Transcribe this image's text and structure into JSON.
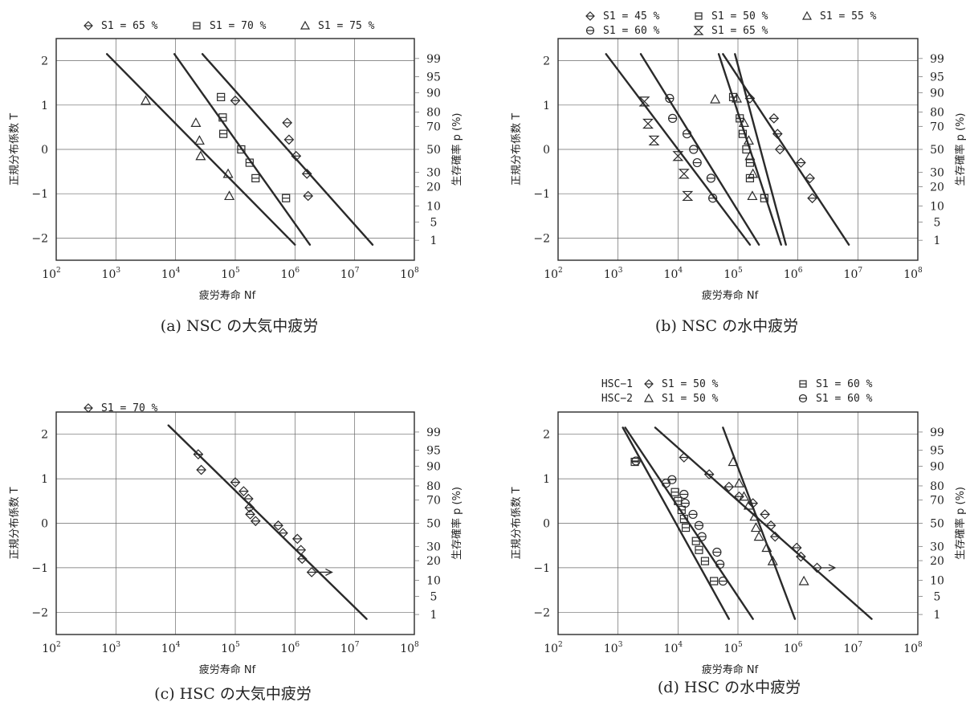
{
  "chart_data": [
    {
      "id": "a",
      "type": "scatter",
      "caption": "(a)  NSC の大気中疲労",
      "xlabel": "疲労寿命  Nf",
      "ylabel_left": "正規分布係数  T",
      "ylabel_right": "生存確率  p (%)",
      "x_scale": "log10",
      "xlim_exp": [
        2,
        8
      ],
      "ylim": [
        -2.5,
        2.5
      ],
      "x_tick_exponents": [
        2,
        3,
        4,
        5,
        6,
        7,
        8
      ],
      "y_ticks": [
        -2,
        -1,
        0,
        1,
        2
      ],
      "right_ticks": [
        {
          "label": "99",
          "t": 2.05
        },
        {
          "label": "95",
          "t": 1.64
        },
        {
          "label": "90",
          "t": 1.28
        },
        {
          "label": "80",
          "t": 0.84
        },
        {
          "label": "70",
          "t": 0.52
        },
        {
          "label": "50",
          "t": 0
        },
        {
          "label": "30",
          "t": -0.52
        },
        {
          "label": "20",
          "t": -0.84
        },
        {
          "label": "10",
          "t": -1.28
        },
        {
          "label": "5",
          "t": -1.64
        },
        {
          "label": "1",
          "t": -2.05
        }
      ],
      "legend_rows": [
        [
          {
            "marker": "diamond",
            "text": "S1 = 65 %"
          },
          {
            "marker": "square",
            "text": "S1 = 70 %"
          },
          {
            "marker": "triangle",
            "text": "S1 = 75 %"
          }
        ]
      ],
      "series": [
        {
          "marker": "triangle",
          "points": [
            [
              3.5,
              1.1
            ],
            [
              4.34,
              0.6
            ],
            [
              4.4,
              0.2
            ],
            [
              4.42,
              -0.15
            ],
            [
              4.88,
              -0.55
            ],
            [
              4.9,
              -1.05
            ]
          ],
          "fit": [
            [
              2.85,
              2.15
            ],
            [
              6.0,
              -2.15
            ]
          ]
        },
        {
          "marker": "square",
          "points": [
            [
              4.76,
              1.18
            ],
            [
              4.79,
              0.72
            ],
            [
              4.8,
              0.35
            ],
            [
              5.1,
              0.0
            ],
            [
              5.24,
              -0.3
            ],
            [
              5.34,
              -0.65
            ],
            [
              5.85,
              -1.1
            ]
          ],
          "fit": [
            [
              3.98,
              2.15
            ],
            [
              6.25,
              -2.15
            ]
          ]
        },
        {
          "marker": "diamond",
          "points": [
            [
              5.0,
              1.1
            ],
            [
              5.87,
              0.6
            ],
            [
              5.9,
              0.22
            ],
            [
              6.02,
              -0.15
            ],
            [
              6.2,
              -0.55
            ],
            [
              6.22,
              -1.05
            ]
          ],
          "fit": [
            [
              4.45,
              2.15
            ],
            [
              7.3,
              -2.15
            ]
          ]
        }
      ]
    },
    {
      "id": "b",
      "type": "scatter",
      "caption": "(b)  NSC の水中疲労",
      "xlabel": "疲労寿命  Nf",
      "ylabel_left": "正規分布係数  T",
      "ylabel_right": "生存確率  p (%)",
      "x_scale": "log10",
      "xlim_exp": [
        2,
        8
      ],
      "ylim": [
        -2.5,
        2.5
      ],
      "x_tick_exponents": [
        2,
        3,
        4,
        5,
        6,
        7,
        8
      ],
      "y_ticks": [
        -2,
        -1,
        0,
        1,
        2
      ],
      "right_ticks": [
        {
          "label": "99",
          "t": 2.05
        },
        {
          "label": "95",
          "t": 1.64
        },
        {
          "label": "90",
          "t": 1.28
        },
        {
          "label": "80",
          "t": 0.84
        },
        {
          "label": "70",
          "t": 0.52
        },
        {
          "label": "50",
          "t": 0
        },
        {
          "label": "30",
          "t": -0.52
        },
        {
          "label": "20",
          "t": -0.84
        },
        {
          "label": "10",
          "t": -1.28
        },
        {
          "label": "5",
          "t": -1.64
        },
        {
          "label": "1",
          "t": -2.05
        }
      ],
      "legend_rows": [
        [
          {
            "marker": "diamond",
            "text": "S1 = 45 %"
          },
          {
            "marker": "square",
            "text": "S1 = 50 %"
          },
          {
            "marker": "triangle",
            "text": "S1 = 55 %"
          }
        ],
        [
          {
            "marker": "circle",
            "text": "S1 = 60 %"
          },
          {
            "marker": "hourglass",
            "text": "S1 = 65 %"
          }
        ]
      ],
      "series": [
        {
          "marker": "hourglass",
          "points": [
            [
              3.44,
              1.08
            ],
            [
              3.5,
              0.58
            ],
            [
              3.6,
              0.2
            ],
            [
              4.0,
              -0.15
            ],
            [
              4.1,
              -0.55
            ],
            [
              4.16,
              -1.05
            ]
          ],
          "fit": [
            [
              2.8,
              2.15
            ],
            [
              5.2,
              -2.15
            ]
          ]
        },
        {
          "marker": "circle",
          "points": [
            [
              3.86,
              1.15
            ],
            [
              3.91,
              0.7
            ],
            [
              4.15,
              0.35
            ],
            [
              4.26,
              0.0
            ],
            [
              4.32,
              -0.3
            ],
            [
              4.55,
              -0.65
            ],
            [
              4.58,
              -1.1
            ]
          ],
          "fit": [
            [
              3.38,
              2.15
            ],
            [
              5.35,
              -2.15
            ]
          ]
        },
        {
          "marker": "triangle",
          "points": [
            [
              4.62,
              1.13
            ],
            [
              4.98,
              1.15
            ],
            [
              5.1,
              0.6
            ],
            [
              5.18,
              0.2
            ],
            [
              5.2,
              -0.15
            ],
            [
              5.25,
              -0.55
            ],
            [
              5.24,
              -1.05
            ]
          ],
          "fit": [
            [
              4.68,
              2.15
            ],
            [
              5.72,
              -2.15
            ]
          ]
        },
        {
          "marker": "square",
          "points": [
            [
              4.92,
              1.18
            ],
            [
              5.03,
              0.7
            ],
            [
              5.08,
              0.35
            ],
            [
              5.14,
              0.0
            ],
            [
              5.2,
              -0.3
            ],
            [
              5.2,
              -0.65
            ],
            [
              5.44,
              -1.1
            ]
          ],
          "fit": [
            [
              4.95,
              2.15
            ],
            [
              5.8,
              -2.15
            ]
          ]
        },
        {
          "marker": "diamond",
          "points": [
            [
              5.2,
              1.15
            ],
            [
              5.6,
              0.7
            ],
            [
              5.66,
              0.35
            ],
            [
              5.7,
              0.0
            ],
            [
              6.05,
              -0.3
            ],
            [
              6.2,
              -0.65
            ],
            [
              6.24,
              -1.1
            ]
          ],
          "fit": [
            [
              4.75,
              2.15
            ],
            [
              6.85,
              -2.15
            ]
          ]
        }
      ]
    },
    {
      "id": "c",
      "type": "scatter",
      "caption": "(c)  HSC の大気中疲労",
      "xlabel": "疲労寿命  Nf",
      "ylabel_left": "正規分布係数  T",
      "ylabel_right": "生存確率  p (%)",
      "x_scale": "log10",
      "xlim_exp": [
        2,
        8
      ],
      "ylim": [
        -2.5,
        2.5
      ],
      "x_tick_exponents": [
        2,
        3,
        4,
        5,
        6,
        7,
        8
      ],
      "y_ticks": [
        -2,
        -1,
        0,
        1,
        2
      ],
      "right_ticks": [
        {
          "label": "99",
          "t": 2.05
        },
        {
          "label": "95",
          "t": 1.64
        },
        {
          "label": "90",
          "t": 1.28
        },
        {
          "label": "80",
          "t": 0.84
        },
        {
          "label": "70",
          "t": 0.52
        },
        {
          "label": "50",
          "t": 0
        },
        {
          "label": "30",
          "t": -0.52
        },
        {
          "label": "20",
          "t": -0.84
        },
        {
          "label": "10",
          "t": -1.28
        },
        {
          "label": "5",
          "t": -1.64
        },
        {
          "label": "1",
          "t": -2.05
        }
      ],
      "legend_rows": [
        [
          {
            "marker": "diamond",
            "text": "S1 = 70 %"
          }
        ]
      ],
      "series": [
        {
          "marker": "diamond",
          "points": [
            [
              4.38,
              1.55
            ],
            [
              4.43,
              1.2
            ],
            [
              5.0,
              0.92
            ],
            [
              5.14,
              0.72
            ],
            [
              5.22,
              0.55
            ],
            [
              5.24,
              0.35
            ],
            [
              5.25,
              0.2
            ],
            [
              5.34,
              0.05
            ],
            [
              5.72,
              -0.05
            ],
            [
              5.8,
              -0.22
            ],
            [
              6.04,
              -0.35
            ],
            [
              6.1,
              -0.6
            ],
            [
              6.12,
              -0.8
            ],
            [
              6.28,
              -1.1
            ]
          ],
          "runout_arrow": {
            "from": [
              6.35,
              -1.1
            ],
            "to": [
              6.62,
              -1.1
            ]
          },
          "fit": [
            [
              3.88,
              2.2
            ],
            [
              7.2,
              -2.15
            ]
          ]
        }
      ]
    },
    {
      "id": "d",
      "type": "scatter",
      "caption": "(d)  HSC の水中疲労",
      "xlabel": "疲労寿命  Nf",
      "ylabel_left": "正規分布係数  T",
      "ylabel_right": "生存確率  p (%)",
      "x_scale": "log10",
      "xlim_exp": [
        2,
        8
      ],
      "ylim": [
        -2.5,
        2.5
      ],
      "x_tick_exponents": [
        2,
        3,
        4,
        5,
        6,
        7,
        8
      ],
      "y_ticks": [
        -2,
        -1,
        0,
        1,
        2
      ],
      "right_ticks": [
        {
          "label": "99",
          "t": 2.05
        },
        {
          "label": "95",
          "t": 1.64
        },
        {
          "label": "90",
          "t": 1.28
        },
        {
          "label": "80",
          "t": 0.84
        },
        {
          "label": "70",
          "t": 0.52
        },
        {
          "label": "50",
          "t": 0
        },
        {
          "label": "30",
          "t": -0.52
        },
        {
          "label": "20",
          "t": -0.84
        },
        {
          "label": "10",
          "t": -1.28
        },
        {
          "label": "5",
          "t": -1.64
        },
        {
          "label": "1",
          "t": -2.05
        }
      ],
      "legend_rows": [
        [
          {
            "group": "HSC−1",
            "marker": "diamond",
            "text": "S1 = 50 %"
          },
          {
            "marker": "square",
            "text": "S1 = 60 %"
          }
        ],
        [
          {
            "group": "HSC−2",
            "marker": "triangle",
            "text": "S1 = 50 %"
          },
          {
            "marker": "circle",
            "text": "S1 = 60 %"
          }
        ]
      ],
      "series": [
        {
          "marker": "square",
          "points": [
            [
              3.28,
              1.38
            ],
            [
              3.95,
              0.7
            ],
            [
              4.0,
              0.5
            ],
            [
              4.06,
              0.3
            ],
            [
              4.1,
              0.1
            ],
            [
              4.13,
              -0.1
            ],
            [
              4.3,
              -0.4
            ],
            [
              4.35,
              -0.6
            ],
            [
              4.45,
              -0.85
            ],
            [
              4.6,
              -1.3
            ]
          ],
          "fit": [
            [
              3.08,
              2.15
            ],
            [
              4.85,
              -2.15
            ]
          ]
        },
        {
          "marker": "circle",
          "points": [
            [
              3.3,
              1.4
            ],
            [
              3.8,
              0.9
            ],
            [
              3.9,
              0.98
            ],
            [
              4.1,
              0.65
            ],
            [
              4.12,
              0.45
            ],
            [
              4.25,
              0.2
            ],
            [
              4.35,
              -0.05
            ],
            [
              4.4,
              -0.3
            ],
            [
              4.65,
              -0.65
            ],
            [
              4.7,
              -0.92
            ],
            [
              4.75,
              -1.3
            ]
          ],
          "fit": [
            [
              3.12,
              2.15
            ],
            [
              5.25,
              -2.15
            ]
          ]
        },
        {
          "marker": "diamond",
          "points": [
            [
              4.1,
              1.48
            ],
            [
              4.52,
              1.1
            ],
            [
              4.85,
              0.82
            ],
            [
              5.02,
              0.6
            ],
            [
              5.25,
              0.45
            ],
            [
              5.45,
              0.2
            ],
            [
              5.55,
              -0.05
            ],
            [
              5.62,
              -0.3
            ],
            [
              5.98,
              -0.55
            ],
            [
              6.05,
              -0.75
            ],
            [
              6.32,
              -1.0
            ]
          ],
          "runout_arrow": {
            "from": [
              6.4,
              -1.0
            ],
            "to": [
              6.62,
              -1.0
            ]
          },
          "fit": [
            [
              3.62,
              2.15
            ],
            [
              7.23,
              -2.15
            ]
          ]
        },
        {
          "marker": "triangle",
          "points": [
            [
              4.92,
              1.38
            ],
            [
              5.02,
              0.9
            ],
            [
              5.1,
              0.6
            ],
            [
              5.18,
              0.4
            ],
            [
              5.28,
              0.15
            ],
            [
              5.3,
              -0.1
            ],
            [
              5.35,
              -0.3
            ],
            [
              5.48,
              -0.55
            ],
            [
              5.58,
              -0.85
            ],
            [
              6.1,
              -1.3
            ]
          ],
          "fit": [
            [
              4.75,
              2.15
            ],
            [
              5.95,
              -2.15
            ]
          ]
        }
      ]
    }
  ]
}
